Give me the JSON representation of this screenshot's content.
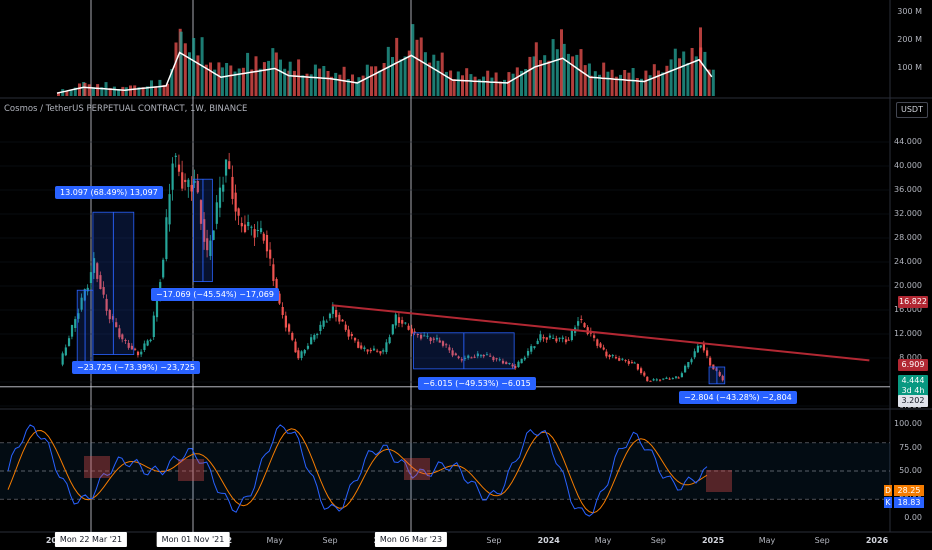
{
  "symbol_title": "Cosmos / TetherUS PERPETUAL CONTRACT, 1W, BINANCE",
  "currency_button": "USDT",
  "price_axis": [
    "44.000",
    "40.000",
    "36.000",
    "32.000",
    "28.000",
    "24.000",
    "20.000",
    "16.000",
    "12.000",
    "8.000",
    "4.000",
    "0.000"
  ],
  "volume_axis": [
    "300 M",
    "200 M",
    "100 M"
  ],
  "oscillator_axis": [
    "100.00",
    "75.00",
    "50.00",
    "25.00",
    "0.00"
  ],
  "x_axis": [
    {
      "label": "2021",
      "bold": true
    },
    {
      "label": "May",
      "bold": false
    },
    {
      "label": "Sep",
      "bold": false
    },
    {
      "label": "2022",
      "bold": true
    },
    {
      "label": "May",
      "bold": false
    },
    {
      "label": "Sep",
      "bold": false
    },
    {
      "label": "2023",
      "bold": true
    },
    {
      "label": "May",
      "bold": false
    },
    {
      "label": "Sep",
      "bold": false
    },
    {
      "label": "2024",
      "bold": true
    },
    {
      "label": "May",
      "bold": false
    },
    {
      "label": "Sep",
      "bold": false
    },
    {
      "label": "2025",
      "bold": true
    },
    {
      "label": "May",
      "bold": false
    },
    {
      "label": "Sep",
      "bold": false
    },
    {
      "label": "2026",
      "bold": true
    }
  ],
  "crosshair_dates": [
    "Mon 22 Mar '21",
    "Mon 01 Nov '21",
    "Mon 06 Mar '23"
  ],
  "measurements": [
    "13.097 (68.49%) 13,097",
    "−17.069 (−45.54%) −17,069",
    "−23.725 (−73.39%) −23,725",
    "−6.015 (−49.53%) −6.015",
    "−2.804 (−43.28%) −2,804"
  ],
  "price_labels": {
    "trend": {
      "text": "16.822",
      "color": "#b22833"
    },
    "close": {
      "text": "6.909",
      "color": "#b22833"
    },
    "last": {
      "text": "4.444",
      "color": "#089981"
    },
    "countdown": {
      "text": "3d 4h",
      "color": "#089981"
    },
    "cross": {
      "text": "3.202",
      "color": "#e0e3eb"
    }
  },
  "oscillator_labels": {
    "d": {
      "tag": "D",
      "value": "28.25",
      "color": "#f57c00"
    },
    "k": {
      "tag": "K",
      "value": "18.83",
      "color": "#2962ff"
    }
  },
  "colors": {
    "up": "#26a69a",
    "down": "#ef5350",
    "trendline": "#b22833",
    "k_line": "#2962ff",
    "d_line": "#f57c00",
    "ma_line": "#ffffff"
  },
  "chart_data": [
    {
      "type": "candlestick",
      "title": "Cosmos / TetherUS PERPETUAL CONTRACT, 1W, BINANCE",
      "interval": "1W",
      "ylim": [
        0,
        46
      ],
      "x_range": [
        "2021-01",
        "2026-01"
      ],
      "series": [
        {
          "values": [
            [
              "2021-01-04",
              6.9
            ],
            [
              "2021-02-01",
              13.0
            ],
            [
              "2021-03-08",
              20.5
            ],
            [
              "2021-03-22",
              23.8
            ],
            [
              "2021-04-19",
              16.0
            ],
            [
              "2021-05-24",
              11.0
            ],
            [
              "2021-06-28",
              8.6
            ],
            [
              "2021-07-26",
              11.5
            ],
            [
              "2021-08-23",
              24.5
            ],
            [
              "2021-09-13",
              41.5
            ],
            [
              "2021-10-11",
              36.5
            ],
            [
              "2021-11-01",
              37.5
            ],
            [
              "2021-11-29",
              25.0
            ],
            [
              "2022-01-10",
              40.8
            ],
            [
              "2022-02-07",
              30.5
            ],
            [
              "2022-04-04",
              28.5
            ],
            [
              "2022-05-09",
              16.5
            ],
            [
              "2022-06-20",
              8.0
            ],
            [
              "2022-08-01",
              12.5
            ],
            [
              "2022-09-05",
              16.0
            ],
            [
              "2022-10-10",
              12.0
            ],
            [
              "2022-11-07",
              9.5
            ],
            [
              "2022-12-26",
              9.0
            ],
            [
              "2023-01-23",
              14.8
            ],
            [
              "2023-03-06",
              12.0
            ],
            [
              "2023-05-01",
              10.8
            ],
            [
              "2023-06-12",
              7.8
            ],
            [
              "2023-08-07",
              8.6
            ],
            [
              "2023-10-16",
              6.5
            ],
            [
              "2023-12-11",
              11.5
            ],
            [
              "2024-02-12",
              11.0
            ],
            [
              "2024-03-04",
              14.5
            ],
            [
              "2024-05-06",
              8.5
            ],
            [
              "2024-07-08",
              7.0
            ],
            [
              "2024-08-05",
              4.2
            ],
            [
              "2024-10-14",
              4.8
            ],
            [
              "2024-12-02",
              10.5
            ],
            [
              "2024-12-23",
              6.909
            ],
            [
              "2025-01-20",
              4.444
            ]
          ]
        }
      ],
      "trendline": [
        [
          "2022-09-05",
          16.8
        ],
        [
          "2025-12-15",
          7.6
        ]
      ],
      "measurements": [
        {
          "from": "2021-02-15",
          "to": "2021-03-22",
          "change": "13.097",
          "pct": "68.49%"
        },
        {
          "from": "2021-03-22",
          "to": "2021-06-21",
          "change": "-23.725",
          "pct": "-73.39%"
        },
        {
          "from": "2021-11-01",
          "to": "2021-12-13",
          "change": "-17.069",
          "pct": "-45.54%"
        },
        {
          "from": "2023-03-06",
          "to": "2023-10-16",
          "change": "-6.015",
          "pct": "-49.53%"
        },
        {
          "from": "2024-12-23",
          "to": "2025-01-27",
          "change": "-2.804",
          "pct": "-43.28%"
        }
      ]
    },
    {
      "type": "bar",
      "ylabel": "Volume",
      "ylim": [
        0,
        330
      ],
      "y_unit": "M",
      "series": [
        {
          "values": [
            [
              "2021-01",
              20
            ],
            [
              "2021-03",
              60
            ],
            [
              "2021-06",
              40
            ],
            [
              "2021-09",
              70
            ],
            [
              "2021-10",
              300
            ],
            [
              "2022-01",
              130
            ],
            [
              "2022-05",
              190
            ],
            [
              "2022-06",
              140
            ],
            [
              "2022-09",
              120
            ],
            [
              "2022-11",
              90
            ],
            [
              "2023-03",
              280
            ],
            [
              "2023-06",
              110
            ],
            [
              "2023-10",
              90
            ],
            [
              "2023-12",
              200
            ],
            [
              "2024-02",
              260
            ],
            [
              "2024-04",
              130
            ],
            [
              "2024-08",
              100
            ],
            [
              "2024-12",
              250
            ],
            [
              "2025-01",
              120
            ]
          ]
        }
      ]
    },
    {
      "type": "line",
      "ylabel": "Stochastic",
      "ylim": [
        0,
        100
      ],
      "bands": [
        20,
        50,
        80
      ],
      "series": [
        {
          "name": "K",
          "values": [
            18.83
          ]
        },
        {
          "name": "D",
          "values": [
            28.25
          ]
        }
      ]
    }
  ]
}
